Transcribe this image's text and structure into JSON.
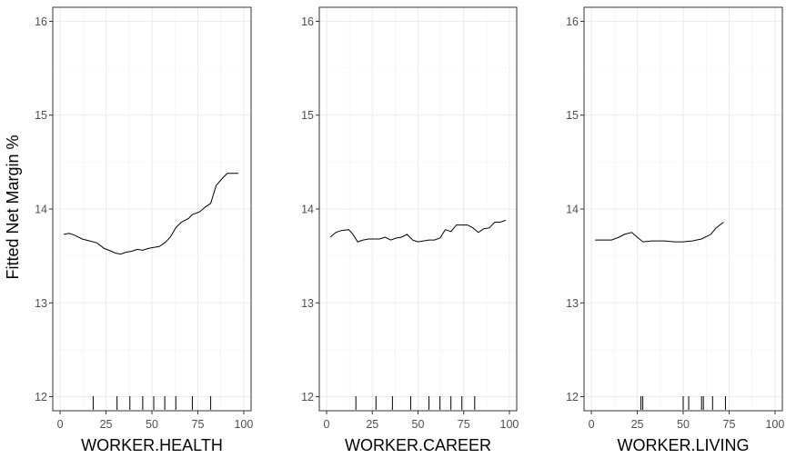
{
  "chart_data": [
    {
      "type": "line",
      "xlabel": "WORKER.HEALTH",
      "ylabel": "Fitted Net Margin %",
      "xlim": [
        -4,
        104
      ],
      "ylim": [
        11.85,
        16.15
      ],
      "xticks": [
        0,
        25,
        50,
        75,
        100
      ],
      "yticks": [
        12,
        13,
        14,
        15,
        16
      ],
      "grid": true,
      "x": [
        2,
        5,
        8,
        12,
        16,
        20,
        24,
        28,
        30,
        33,
        36,
        39,
        42,
        45,
        48,
        51,
        54,
        57,
        60,
        63,
        66,
        70,
        72,
        76,
        79,
        82,
        85,
        88,
        91,
        94,
        97
      ],
      "y": [
        13.73,
        13.74,
        13.72,
        13.68,
        13.66,
        13.64,
        13.58,
        13.55,
        13.53,
        13.52,
        13.54,
        13.55,
        13.57,
        13.56,
        13.58,
        13.59,
        13.6,
        13.64,
        13.7,
        13.8,
        13.86,
        13.9,
        13.94,
        13.97,
        14.02,
        14.06,
        14.25,
        14.32,
        14.38,
        14.38,
        14.38
      ],
      "rug": [
        18,
        31,
        38,
        45,
        51,
        57,
        63,
        72,
        82
      ]
    },
    {
      "type": "line",
      "xlabel": "WORKER.CAREER",
      "xlim": [
        -4,
        104
      ],
      "ylim": [
        11.85,
        16.15
      ],
      "xticks": [
        0,
        25,
        50,
        75,
        100
      ],
      "yticks": [
        12,
        13,
        14,
        15,
        16
      ],
      "grid": true,
      "x": [
        2,
        5,
        8,
        12,
        14,
        17,
        20,
        23,
        26,
        29,
        32,
        35,
        38,
        41,
        44,
        47,
        50,
        53,
        56,
        59,
        62,
        65,
        68,
        71,
        74,
        77,
        80,
        83,
        86,
        89,
        92,
        95,
        98
      ],
      "y": [
        13.7,
        13.75,
        13.77,
        13.78,
        13.74,
        13.65,
        13.67,
        13.68,
        13.68,
        13.68,
        13.7,
        13.67,
        13.69,
        13.7,
        13.73,
        13.67,
        13.65,
        13.66,
        13.67,
        13.67,
        13.69,
        13.78,
        13.76,
        13.83,
        13.83,
        13.83,
        13.8,
        13.75,
        13.79,
        13.8,
        13.86,
        13.86,
        13.88
      ],
      "rug": [
        16,
        27,
        36,
        46,
        56,
        62,
        68,
        74,
        81
      ]
    },
    {
      "type": "line",
      "xlabel": "WORKER.LIVING",
      "xlim": [
        -4,
        104
      ],
      "ylim": [
        11.85,
        16.15
      ],
      "xticks": [
        0,
        25,
        50,
        75,
        100
      ],
      "yticks": [
        12,
        13,
        14,
        15,
        16
      ],
      "grid": true,
      "x": [
        2,
        7,
        11,
        15,
        18,
        22,
        25,
        28,
        33,
        40,
        45,
        50,
        55,
        60,
        65,
        68,
        72
      ],
      "y": [
        13.67,
        13.67,
        13.67,
        13.7,
        13.73,
        13.75,
        13.7,
        13.65,
        13.66,
        13.66,
        13.65,
        13.65,
        13.66,
        13.68,
        13.73,
        13.8,
        13.86
      ],
      "rug": [
        27,
        28,
        50,
        53,
        60,
        61,
        66,
        73
      ]
    }
  ]
}
